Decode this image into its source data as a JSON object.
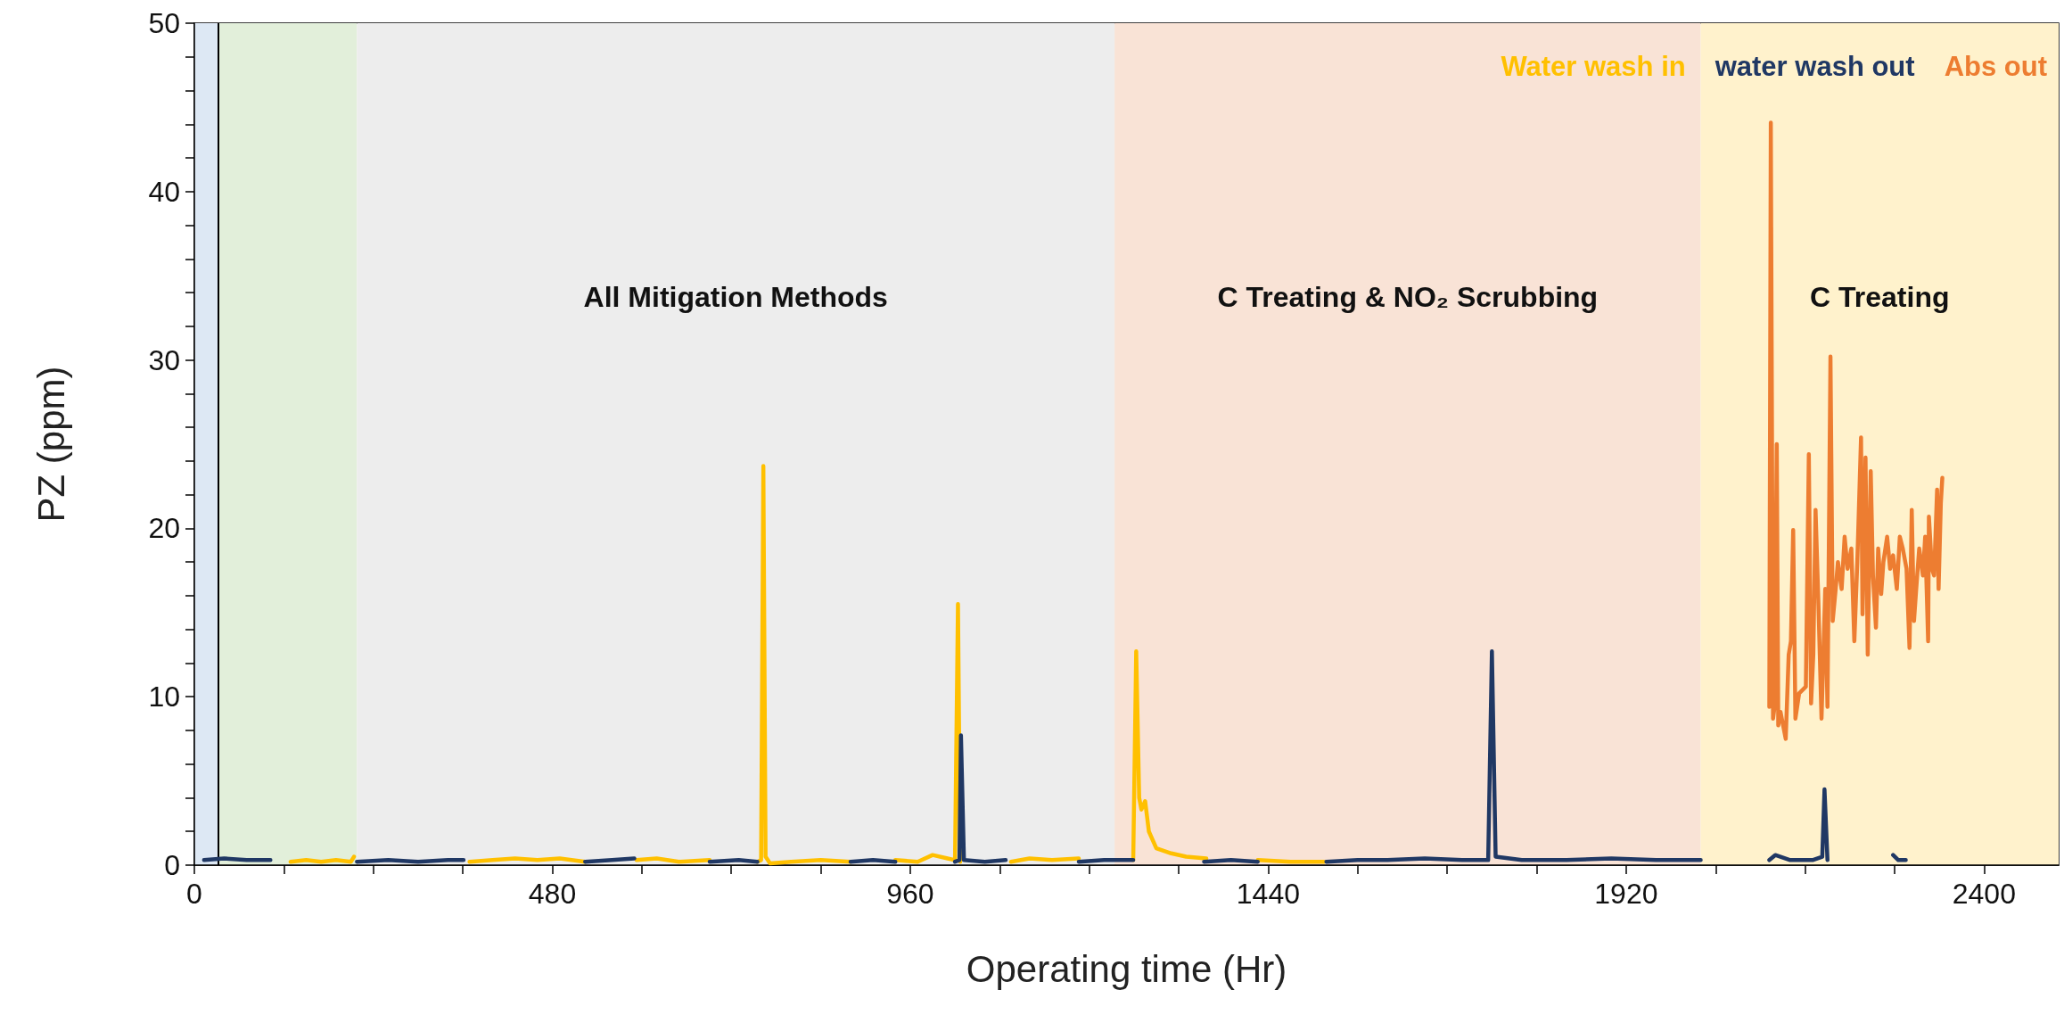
{
  "chart_data": {
    "type": "line",
    "xlabel": "Operating time (Hr)",
    "ylabel": "PZ (ppm)",
    "xlim": [
      0,
      2500
    ],
    "ylim": [
      0,
      50
    ],
    "xticks": [
      0,
      {
        "value": 120,
        "label": null
      },
      {
        "value": 240,
        "label": null
      },
      {
        "value": 360,
        "label": null
      },
      480,
      {
        "value": 600,
        "label": null
      },
      {
        "value": 720,
        "label": null
      },
      {
        "value": 840,
        "label": null
      },
      960,
      {
        "value": 1080,
        "label": null
      },
      {
        "value": 1200,
        "label": null
      },
      {
        "value": 1320,
        "label": null
      },
      1440,
      {
        "value": 1560,
        "label": null
      },
      {
        "value": 1680,
        "label": null
      },
      {
        "value": 1800,
        "label": null
      },
      1920,
      {
        "value": 2040,
        "label": null
      },
      {
        "value": 2160,
        "label": null
      },
      {
        "value": 2280,
        "label": null
      },
      2400
    ],
    "yticks": [
      0,
      {
        "value": 2,
        "label": null
      },
      {
        "value": 4,
        "label": null
      },
      {
        "value": 6,
        "label": null
      },
      {
        "value": 8,
        "label": null
      },
      10,
      {
        "value": 12,
        "label": null
      },
      {
        "value": 14,
        "label": null
      },
      {
        "value": 16,
        "label": null
      },
      {
        "value": 18,
        "label": null
      },
      20,
      {
        "value": 22,
        "label": null
      },
      {
        "value": 24,
        "label": null
      },
      {
        "value": 26,
        "label": null
      },
      {
        "value": 28,
        "label": null
      },
      30,
      {
        "value": 32,
        "label": null
      },
      {
        "value": 34,
        "label": null
      },
      {
        "value": 36,
        "label": null
      },
      {
        "value": 38,
        "label": null
      },
      40,
      {
        "value": 42,
        "label": null
      },
      {
        "value": 44,
        "label": null
      },
      {
        "value": 46,
        "label": null
      },
      {
        "value": 48,
        "label": null
      },
      50
    ],
    "grid": false,
    "legend": "top right",
    "marker": "none",
    "line_style": "solid",
    "bands": [
      {
        "axis": "x",
        "from": 0,
        "to": 32,
        "color": "#dde8f4"
      },
      {
        "axis": "x",
        "from": 32,
        "to": 218,
        "color": "#e2efda"
      },
      {
        "axis": "x",
        "from": 218,
        "to": 1234,
        "color": "#ededed",
        "label": "All Mitigation Methods"
      },
      {
        "axis": "x",
        "from": 1234,
        "to": 2020,
        "color": "#f9e3d6",
        "label": "C Treating & NO₂ Scrubbing"
      },
      {
        "axis": "x",
        "from": 2020,
        "to": 2500,
        "color": "#fff2cc",
        "label": "C Treating"
      }
    ],
    "ref_lines": [
      {
        "axis": "x",
        "value": 32,
        "color": "#000000"
      }
    ],
    "series": [
      {
        "name": "Water wash in",
        "color": "#ffc000",
        "x": [
          129,
          150,
          170,
          190,
          210,
          214,
          216,
          369,
          400,
          430,
          460,
          490,
          524,
          526,
          593,
          620,
          650,
          691,
          693,
          755,
          760,
          763,
          766,
          772,
          800,
          840,
          880,
          882,
          940,
          970,
          990,
          1010,
          1020,
          1024,
          1027,
          1030,
          1095,
          1120,
          1150,
          1186,
          1188,
          1259,
          1263,
          1267,
          1270,
          1275,
          1280,
          1290,
          1310,
          1330,
          1357,
          1360,
          1426,
          1470,
          1515
        ],
        "values": [
          0.2,
          0.3,
          0.2,
          0.3,
          0.2,
          0.5,
          null,
          0.2,
          0.3,
          0.4,
          0.3,
          0.4,
          0.2,
          null,
          0.3,
          0.4,
          0.2,
          0.3,
          null,
          0.2,
          0.3,
          23.7,
          0.5,
          0.1,
          0.2,
          0.3,
          0.2,
          null,
          0.3,
          0.2,
          0.6,
          0.4,
          0.3,
          15.5,
          0.2,
          null,
          0.2,
          0.4,
          0.3,
          0.4,
          null,
          0.3,
          12.7,
          4.0,
          3.3,
          3.8,
          2.0,
          1.0,
          0.7,
          0.5,
          0.4,
          null,
          0.3,
          0.2,
          0.2
        ]
      },
      {
        "name": "water wash out",
        "color": "#203864",
        "x": [
          13,
          40,
          70,
          102,
          104,
          218,
          260,
          300,
          340,
          361,
          363,
          524,
          560,
          590,
          592,
          691,
          730,
          755,
          757,
          880,
          910,
          940,
          942,
          1020,
          1026,
          1028,
          1032,
          1060,
          1088,
          1090,
          1186,
          1220,
          1259,
          1261,
          1354,
          1390,
          1426,
          1428,
          1518,
          1560,
          1600,
          1650,
          1700,
          1735,
          1740,
          1745,
          1780,
          1840,
          1900,
          1960,
          2020,
          2022,
          2112,
          2120,
          2140,
          2170,
          2183,
          2186,
          2190,
          2192,
          2278,
          2285,
          2295
        ],
        "values": [
          0.3,
          0.4,
          0.3,
          0.3,
          null,
          0.2,
          0.3,
          0.2,
          0.3,
          0.3,
          null,
          0.2,
          0.3,
          0.4,
          null,
          0.2,
          0.3,
          0.2,
          null,
          0.2,
          0.3,
          0.2,
          null,
          0.2,
          0.3,
          7.7,
          0.3,
          0.2,
          0.3,
          null,
          0.2,
          0.3,
          0.3,
          null,
          0.2,
          0.3,
          0.2,
          null,
          0.2,
          0.3,
          0.3,
          0.4,
          0.3,
          0.3,
          12.7,
          0.5,
          0.3,
          0.3,
          0.4,
          0.3,
          0.3,
          null,
          0.3,
          0.6,
          0.3,
          0.3,
          0.5,
          4.5,
          0.3,
          null,
          0.6,
          0.3,
          0.3
        ]
      },
      {
        "name": "Abs out",
        "color": "#ed7d31",
        "x": [
          2112,
          2114,
          2117,
          2119,
          2122,
          2124,
          2127,
          2134,
          2138,
          2141,
          2144,
          2147,
          2152,
          2161,
          2165,
          2168,
          2171,
          2174,
          2178,
          2182,
          2187,
          2190,
          2194,
          2197,
          2201,
          2204,
          2209,
          2213,
          2217,
          2222,
          2226,
          2230,
          2235,
          2237,
          2241,
          2244,
          2248,
          2251,
          2255,
          2258,
          2262,
          2265,
          2270,
          2274,
          2278,
          2283,
          2287,
          2291,
          2296,
          2300,
          2303,
          2306,
          2309,
          2313,
          2318,
          2321,
          2325,
          2326,
          2330,
          2333,
          2337,
          2339,
          2342,
          2344
        ],
        "values": [
          9.4,
          44.1,
          8.7,
          9.4,
          25.0,
          8.3,
          9.1,
          7.5,
          12.5,
          13.3,
          19.9,
          8.7,
          10.2,
          10.6,
          24.4,
          9.6,
          12.5,
          21.1,
          15.3,
          8.7,
          16.4,
          9.4,
          30.2,
          14.5,
          16.4,
          18.0,
          16.4,
          19.5,
          17.6,
          18.8,
          13.3,
          18.0,
          25.4,
          14.9,
          24.2,
          12.5,
          23.4,
          17.2,
          14.1,
          18.8,
          16.1,
          18.0,
          19.5,
          17.6,
          18.4,
          16.4,
          19.5,
          18.8,
          17.6,
          12.9,
          21.1,
          14.5,
          16.4,
          18.8,
          17.2,
          19.5,
          13.3,
          20.7,
          17.6,
          17.2,
          22.3,
          16.4,
          21.5,
          23.0
        ]
      }
    ]
  }
}
